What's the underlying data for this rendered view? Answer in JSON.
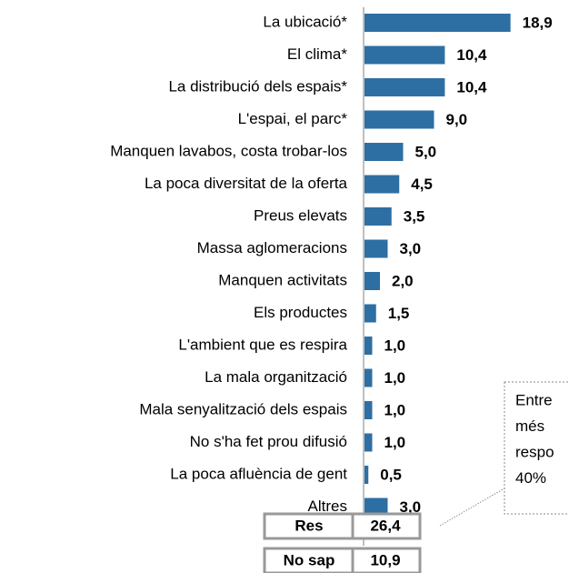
{
  "chart_data": {
    "type": "bar",
    "orientation": "horizontal",
    "categories": [
      "La ubicació*",
      "El clima*",
      "La distribució dels espais*",
      "L'espai, el parc*",
      "Manquen lavabos, costa trobar-los",
      "La poca diversitat de la oferta",
      "Preus elevats",
      "Massa aglomeracions",
      "Manquen activitats",
      "Els productes",
      "L'ambient que es respira",
      "La mala organització",
      "Mala senyalització dels espais",
      "No s'ha fet prou difusió",
      "La poca afluència de gent",
      "Altres"
    ],
    "values": [
      18.9,
      10.4,
      10.4,
      9.0,
      5.0,
      4.5,
      3.5,
      3.0,
      2.0,
      1.5,
      1.0,
      1.0,
      1.0,
      1.0,
      0.5,
      3.0
    ],
    "value_labels": [
      "18,9",
      "10,4",
      "10,4",
      "9,0",
      "5,0",
      "4,5",
      "3,5",
      "3,0",
      "2,0",
      "1,5",
      "1,0",
      "1,0",
      "1,0",
      "1,0",
      "0,5",
      "3,0"
    ],
    "color": "#2e6fa3",
    "summary": [
      {
        "label": "Res",
        "value": "26,4"
      },
      {
        "label": "No sap",
        "value": "10,9"
      }
    ],
    "callout": [
      "Entre",
      "més",
      "respo",
      "40%"
    ]
  }
}
